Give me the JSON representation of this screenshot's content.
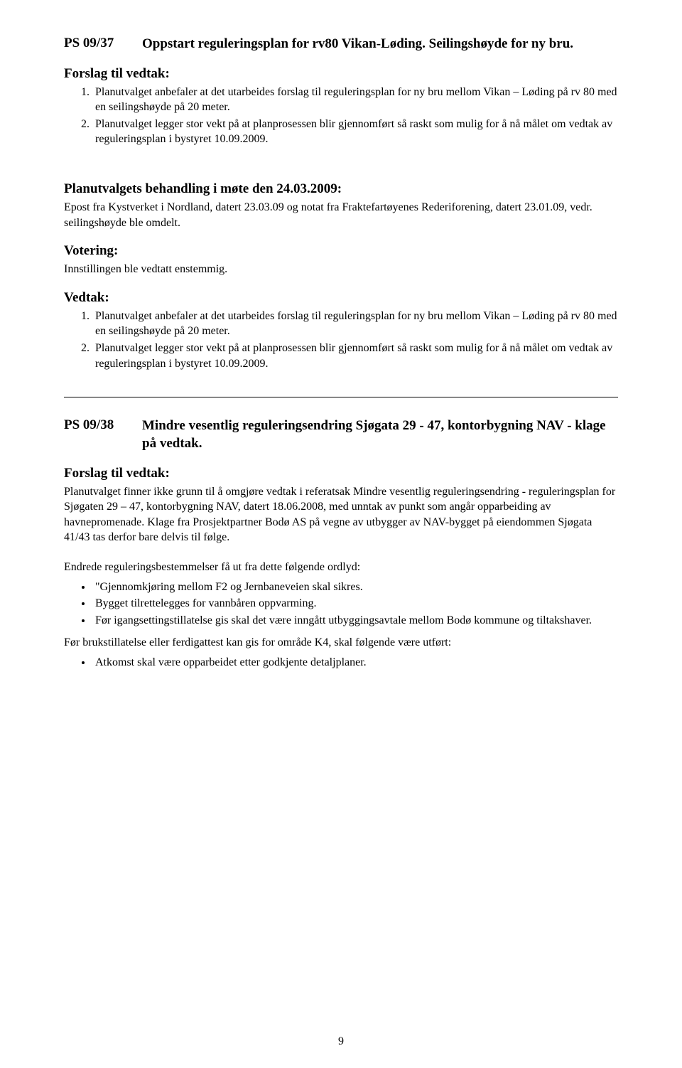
{
  "section1": {
    "id": "PS 09/37",
    "title": "Oppstart reguleringsplan for rv80 Vikan-Løding. Seilingshøyde for ny bru.",
    "forslag_heading": "Forslag til vedtak:",
    "forslag_items": [
      "Planutvalget anbefaler at det utarbeides forslag til reguleringsplan for ny bru mellom Vikan – Løding på rv 80 med en seilingshøyde på 20 meter.",
      "Planutvalget legger stor vekt på at planprosessen blir gjennomført så raskt som mulig for å nå målet om vedtak av reguleringsplan i bystyret 10.09.2009."
    ],
    "behandling_heading": "Planutvalgets behandling i møte den 24.03.2009:",
    "behandling_text": "Epost fra Kystverket i Nordland, datert 23.03.09 og notat fra Fraktefartøyenes Rederiforening, datert 23.01.09, vedr. seilingshøyde ble omdelt.",
    "votering_heading": "Votering:",
    "votering_text": "Innstillingen ble vedtatt enstemmig.",
    "vedtak_heading": "Vedtak:",
    "vedtak_items": [
      "Planutvalget anbefaler at det utarbeides forslag til reguleringsplan for ny bru mellom Vikan – Løding på rv 80 med en seilingshøyde på 20 meter.",
      "Planutvalget legger stor vekt på at planprosessen blir gjennomført så raskt som mulig for å nå målet om vedtak av reguleringsplan i bystyret 10.09.2009."
    ]
  },
  "section2": {
    "id": "PS 09/38",
    "title": "Mindre vesentlig reguleringsendring Sjøgata 29 - 47, kontorbygning NAV - klage på vedtak.",
    "forslag_heading": "Forslag til vedtak:",
    "forslag_text": "Planutvalget finner ikke grunn til å omgjøre vedtak i referatsak Mindre vesentlig reguleringsendring - reguleringsplan for Sjøgaten 29 – 47, kontorbygning NAV, datert 18.06.2008, med unntak av punkt som angår opparbeiding av havnepromenade. Klage fra Prosjektpartner Bodø AS på vegne av utbygger av NAV-bygget på eiendommen Sjøgata 41/43 tas derfor bare delvis til følge.",
    "endrede_text": "Endrede reguleringsbestemmelser få ut fra dette følgende ordlyd:",
    "bullet_items": [
      "\"Gjennomkjøring mellom F2 og Jernbaneveien skal sikres.",
      "Bygget tilrettelegges for vannbåren oppvarming.",
      "Før igangsettingstillatelse gis skal det være inngått utbyggingsavtale mellom Bodø kommune og tiltakshaver."
    ],
    "before_text": "Før brukstillatelse eller ferdigattest kan gis for område K4, skal følgende være utført:",
    "last_bullets": [
      "Atkomst skal være opparbeidet etter godkjente detaljplaner."
    ]
  },
  "page_number": "9"
}
